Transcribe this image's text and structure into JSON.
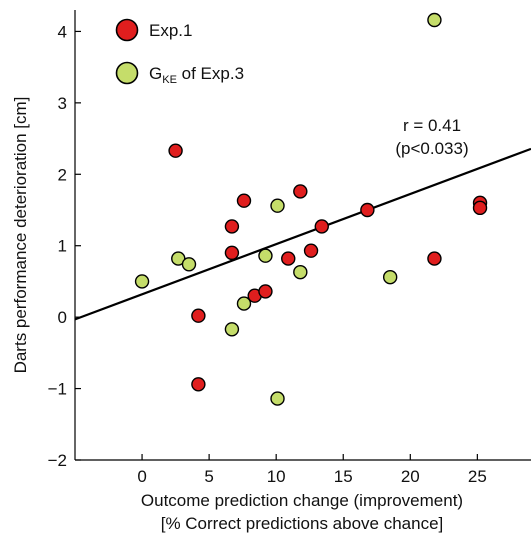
{
  "chart_data": {
    "type": "scatter",
    "xlabel_line1": "Outcome prediction change (improvement)",
    "xlabel_line2": "[% Correct predictions above chance]",
    "ylabel": "Darts performance deterioration [cm]",
    "xlim": [
      -5,
      29
    ],
    "ylim": [
      -2,
      4.3
    ],
    "x_ticks": [
      0,
      5,
      10,
      15,
      20,
      25
    ],
    "y_ticks": [
      -2,
      -1,
      0,
      1,
      2,
      3,
      4
    ],
    "grid": false,
    "legend_position": "top-left",
    "series": [
      {
        "name": "Exp.1",
        "name_main": "Exp.1",
        "color": "#e01e1e",
        "points": [
          [
            2.5,
            2.33
          ],
          [
            4.2,
            0.02
          ],
          [
            4.2,
            -0.94
          ],
          [
            6.7,
            1.27
          ],
          [
            6.7,
            0.9
          ],
          [
            7.6,
            1.63
          ],
          [
            8.4,
            0.3
          ],
          [
            9.2,
            0.36
          ],
          [
            10.9,
            0.82
          ],
          [
            11.8,
            1.76
          ],
          [
            12.6,
            0.93
          ],
          [
            13.4,
            1.27
          ],
          [
            16.8,
            1.5
          ],
          [
            21.8,
            0.82
          ],
          [
            25.2,
            1.6
          ],
          [
            25.2,
            1.53
          ]
        ]
      },
      {
        "name": "GKE of Exp.3",
        "name_main": "G",
        "name_sub": "KE",
        "name_rest": " of Exp.3",
        "color": "#c5dd6a",
        "points": [
          [
            0.0,
            0.5
          ],
          [
            2.7,
            0.82
          ],
          [
            3.5,
            0.74
          ],
          [
            6.7,
            -0.17
          ],
          [
            7.6,
            0.19
          ],
          [
            9.2,
            0.86
          ],
          [
            10.1,
            1.56
          ],
          [
            10.1,
            -1.14
          ],
          [
            11.8,
            0.63
          ],
          [
            18.5,
            0.56
          ],
          [
            21.8,
            4.16
          ]
        ]
      }
    ],
    "regression": {
      "slope": 0.0702,
      "intercept": 0.32
    },
    "annotations": {
      "r_text": "r = 0.41",
      "p_text": "(p<0.033)"
    }
  }
}
